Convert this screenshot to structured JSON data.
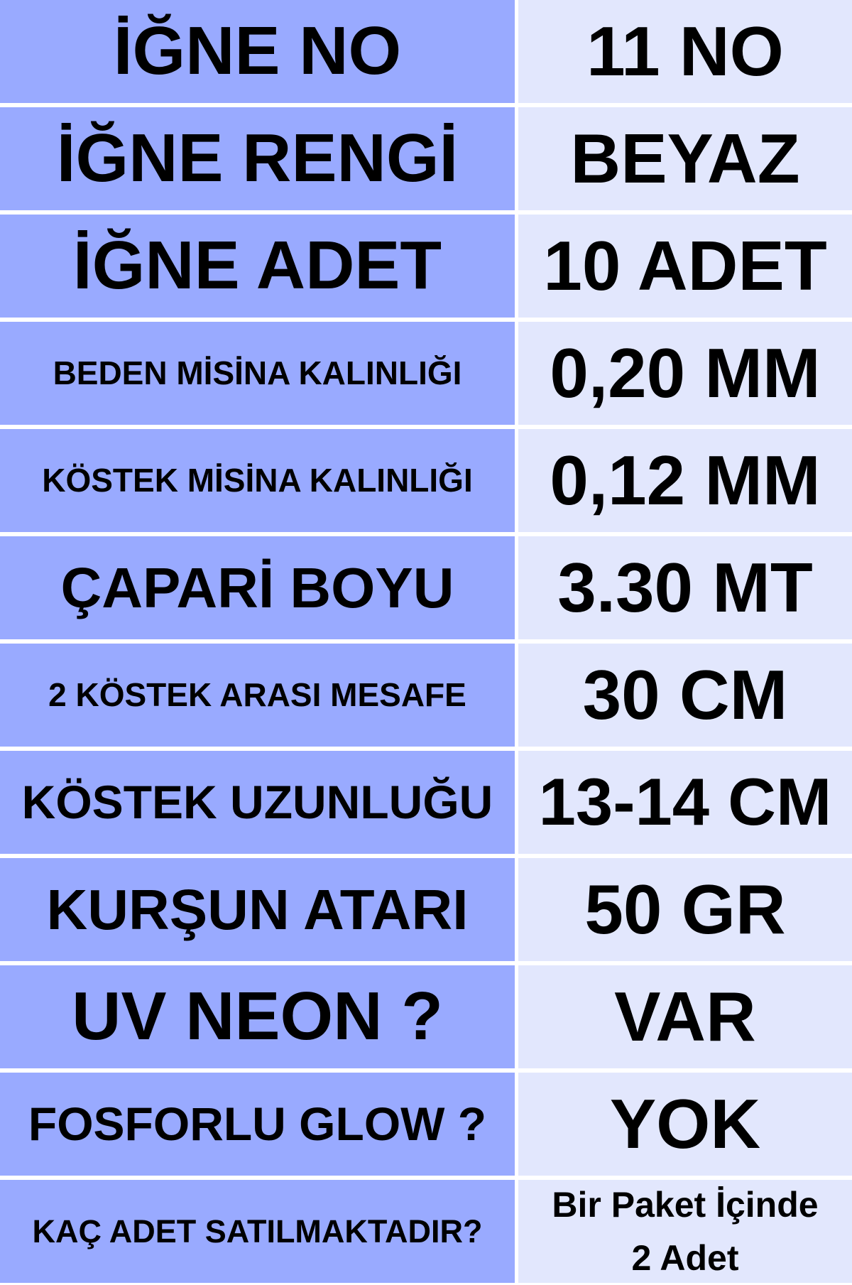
{
  "colors": {
    "label_bg": "#99AAFF",
    "value_bg": "#E2E7FD",
    "text": "#000000"
  },
  "rows": [
    {
      "label": "İĞNE NO",
      "value": "11 NO"
    },
    {
      "label": "İĞNE RENGİ",
      "value": "BEYAZ"
    },
    {
      "label": "İĞNE ADET",
      "value": "10 ADET"
    },
    {
      "label": "BEDEN MİSİNA KALINLIĞI",
      "value": "0,20 MM"
    },
    {
      "label": "KÖSTEK MİSİNA KALINLIĞI",
      "value": "0,12 MM"
    },
    {
      "label": "ÇAPARİ BOYU",
      "value": "3.30 MT"
    },
    {
      "label": "2 KÖSTEK ARASI MESAFE",
      "value": "30 CM"
    },
    {
      "label": "KÖSTEK UZUNLUĞU",
      "value": "13-14 CM"
    },
    {
      "label": "KURŞUN ATARI",
      "value": "50 GR"
    },
    {
      "label": "UV NEON ?",
      "value": "VAR"
    },
    {
      "label": "FOSFORLU GLOW ?",
      "value": "YOK"
    },
    {
      "label": "KAÇ ADET SATILMAKTADIR?",
      "value_line1": "Bir Paket İçinde",
      "value_line2": "2 Adet"
    }
  ]
}
